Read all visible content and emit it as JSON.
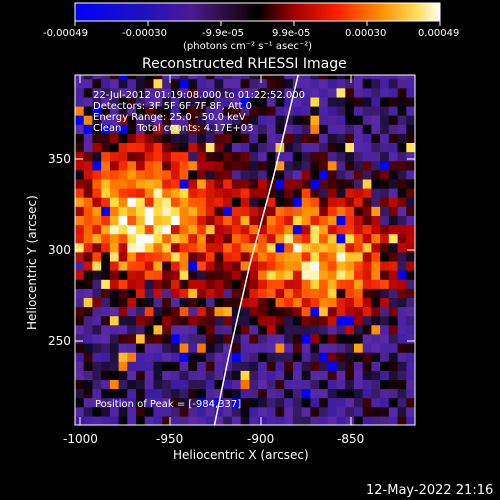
{
  "colorbar": {
    "ticks": [
      "-0.00049",
      "-0.00030",
      "-9.9e-05",
      "9.9e-05",
      "0.00030",
      "0.00049"
    ],
    "unit_label": "(photons cm⁻² s⁻¹ asec⁻²)"
  },
  "plot": {
    "title": "Reconstructed RHESSI Image",
    "info": [
      "22-Jul-2012 01:19:08.000 to 01:22:52.000",
      "Detectors: 3F 5F 6F 7F 8F, Att 0",
      "Energy Range: 25.0 - 50.0 keV",
      "Clean     Total counts: 4.17E+03"
    ],
    "peak_label": "Position of Peak = [-984,337]",
    "xlabel": "Heliocentric X (arcsec)",
    "ylabel": "Heliocentric Y (arcsec)",
    "xticks": [
      "-1000",
      "-950",
      "-900",
      "-850"
    ],
    "yticks": [
      "350",
      "300",
      "250"
    ]
  },
  "footer": {
    "timestamp": "12-May-2022 21:16"
  },
  "chart_data": {
    "type": "heatmap",
    "title": "Reconstructed RHESSI Image",
    "xlabel": "Heliocentric X (arcsec)",
    "ylabel": "Heliocentric Y (arcsec)",
    "xlim": [
      -1000,
      -805
    ],
    "ylim": [
      203,
      395
    ],
    "color_range": [
      -0.00049,
      0.00049
    ],
    "colormap": [
      "#0000ff",
      "#3a1aa0",
      "#5a2aa8",
      "#000000",
      "#b00000",
      "#ff3000",
      "#ff9000",
      "#ffe040",
      "#ffffff"
    ],
    "sources": [
      {
        "x": -960,
        "y": 318,
        "value": 0.00049
      },
      {
        "x": -862,
        "y": 296,
        "value": 0.00045
      }
    ],
    "limb_curve": [
      [
        -920,
        203
      ],
      [
        -912,
        240
      ],
      [
        -900,
        290
      ],
      [
        -886,
        340
      ],
      [
        -872,
        395
      ]
    ],
    "peak": [
      -984,
      337
    ]
  }
}
